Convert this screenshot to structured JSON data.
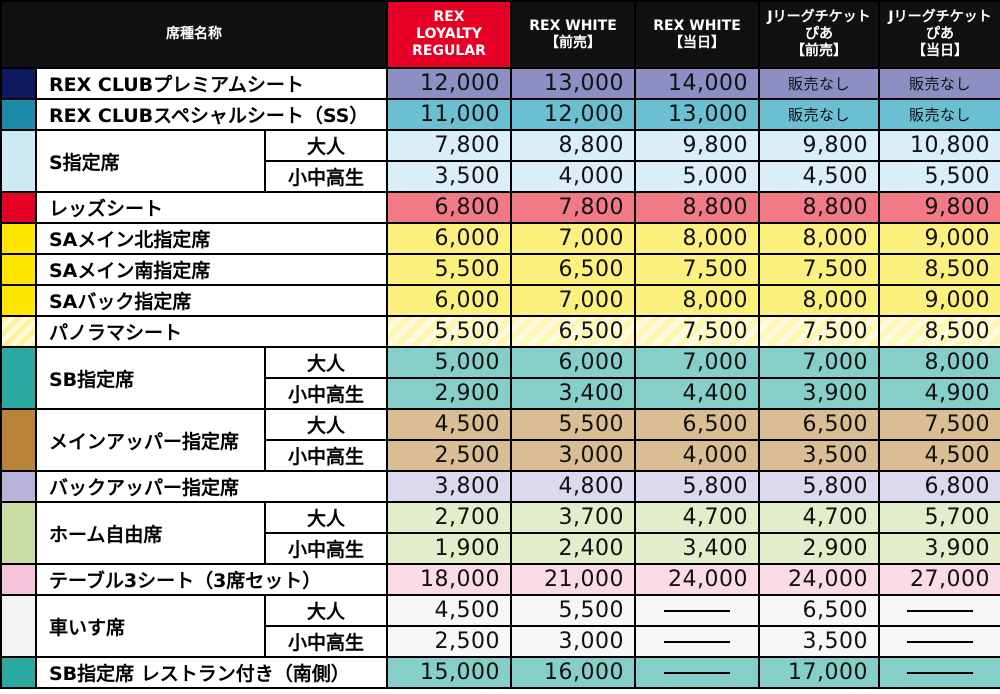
{
  "header": {
    "seat_name": "席種名称",
    "columns": [
      {
        "lines": [
          "REX",
          "LOYALTY",
          "REGULAR"
        ],
        "highlight": true
      },
      {
        "lines": [
          "REX WHITE",
          "【前売】"
        ],
        "highlight": false
      },
      {
        "lines": [
          "REX WHITE",
          "【当日】"
        ],
        "highlight": false
      },
      {
        "lines": [
          "Jリーグチケット",
          "ぴあ",
          "【前売】"
        ],
        "highlight": false
      },
      {
        "lines": [
          "Jリーグチケット",
          "ぴあ",
          "【当日】"
        ],
        "highlight": false
      }
    ]
  },
  "dash_symbol": "——",
  "rows": [
    {
      "name": "REX CLUBプレミアムシート",
      "swatch": "#0d1b5e",
      "bg": "#8d8fc4",
      "values": [
        "12,000",
        "13,000",
        "14,000",
        "販売なし",
        "販売なし"
      ]
    },
    {
      "name": "REX CLUBスペシャルシート（SS）",
      "swatch": "#1d8aa7",
      "bg": "#6bbfd2",
      "values": [
        "11,000",
        "12,000",
        "13,000",
        "販売なし",
        "販売なし"
      ]
    },
    {
      "name": "S指定席",
      "swatch": "#cde9f4",
      "bg": "#daeef8",
      "sub": [
        {
          "label": "大人",
          "values": [
            "7,800",
            "8,800",
            "9,800",
            "9,800",
            "10,800"
          ]
        },
        {
          "label": "小中高生",
          "values": [
            "3,500",
            "4,000",
            "5,000",
            "4,500",
            "5,500"
          ]
        }
      ]
    },
    {
      "name": "レッズシート",
      "swatch": "#e60026",
      "bg": "#f27a84",
      "values": [
        "6,800",
        "7,800",
        "8,800",
        "8,800",
        "9,800"
      ]
    },
    {
      "name": "SAメイン北指定席",
      "swatch": "#ffe600",
      "bg": "#fcf07e",
      "values": [
        "6,000",
        "7,000",
        "8,000",
        "8,000",
        "9,000"
      ]
    },
    {
      "name": "SAメイン南指定席",
      "swatch": "#ffe600",
      "bg": "#fcf07e",
      "values": [
        "5,500",
        "6,500",
        "7,500",
        "7,500",
        "8,500"
      ]
    },
    {
      "name": "SAバック指定席",
      "swatch": "#ffe600",
      "bg": "#fcf07e",
      "values": [
        "6,000",
        "7,000",
        "8,000",
        "8,000",
        "9,000"
      ]
    },
    {
      "name": "パノラマシート",
      "swatch": "#fff4a8",
      "bg": "#fff6b0",
      "striped": true,
      "values": [
        "5,500",
        "6,500",
        "7,500",
        "7,500",
        "8,500"
      ]
    },
    {
      "name": "SB指定席",
      "swatch": "#2aa9a0",
      "bg": "#86cfc9",
      "sub": [
        {
          "label": "大人",
          "values": [
            "5,000",
            "6,000",
            "7,000",
            "7,000",
            "8,000"
          ]
        },
        {
          "label": "小中高生",
          "values": [
            "2,900",
            "3,400",
            "4,400",
            "3,900",
            "4,900"
          ]
        }
      ]
    },
    {
      "name": "メインアッパー指定席",
      "swatch": "#b98437",
      "bg": "#d9bd93",
      "sub": [
        {
          "label": "大人",
          "values": [
            "4,500",
            "5,500",
            "6,500",
            "6,500",
            "7,500"
          ]
        },
        {
          "label": "小中高生",
          "values": [
            "2,500",
            "3,000",
            "4,000",
            "3,500",
            "4,500"
          ]
        }
      ]
    },
    {
      "name": "バックアッパー指定席",
      "swatch": "#b9b2d8",
      "bg": "#dcd8ee",
      "values": [
        "3,800",
        "4,800",
        "5,800",
        "5,800",
        "6,800"
      ]
    },
    {
      "name": "ホーム自由席",
      "swatch": "#c8dea2",
      "bg": "#e2edc9",
      "sub": [
        {
          "label": "大人",
          "values": [
            "2,700",
            "3,700",
            "4,700",
            "4,700",
            "5,700"
          ]
        },
        {
          "label": "小中高生",
          "values": [
            "1,900",
            "2,400",
            "3,400",
            "2,900",
            "3,900"
          ]
        }
      ]
    },
    {
      "name": "テーブル3シート（3席セット）",
      "swatch": "#f6c4d8",
      "bg": "#fadbe7",
      "values": [
        "18,000",
        "21,000",
        "24,000",
        "24,000",
        "27,000"
      ]
    },
    {
      "name": "車いす席",
      "swatch": "#f3f3f3",
      "bg": "#f7f7f7",
      "sub": [
        {
          "label": "大人",
          "values": [
            "4,500",
            "5,500",
            "——",
            "6,500",
            "——"
          ]
        },
        {
          "label": "小中高生",
          "values": [
            "2,500",
            "3,000",
            "——",
            "3,500",
            "——"
          ]
        }
      ]
    },
    {
      "name": "SB指定席 レストラン付き（南側）",
      "swatch": "#2aa9a0",
      "bg": "#86cfc9",
      "values": [
        "15,000",
        "16,000",
        "——",
        "17,000",
        "——"
      ]
    }
  ]
}
